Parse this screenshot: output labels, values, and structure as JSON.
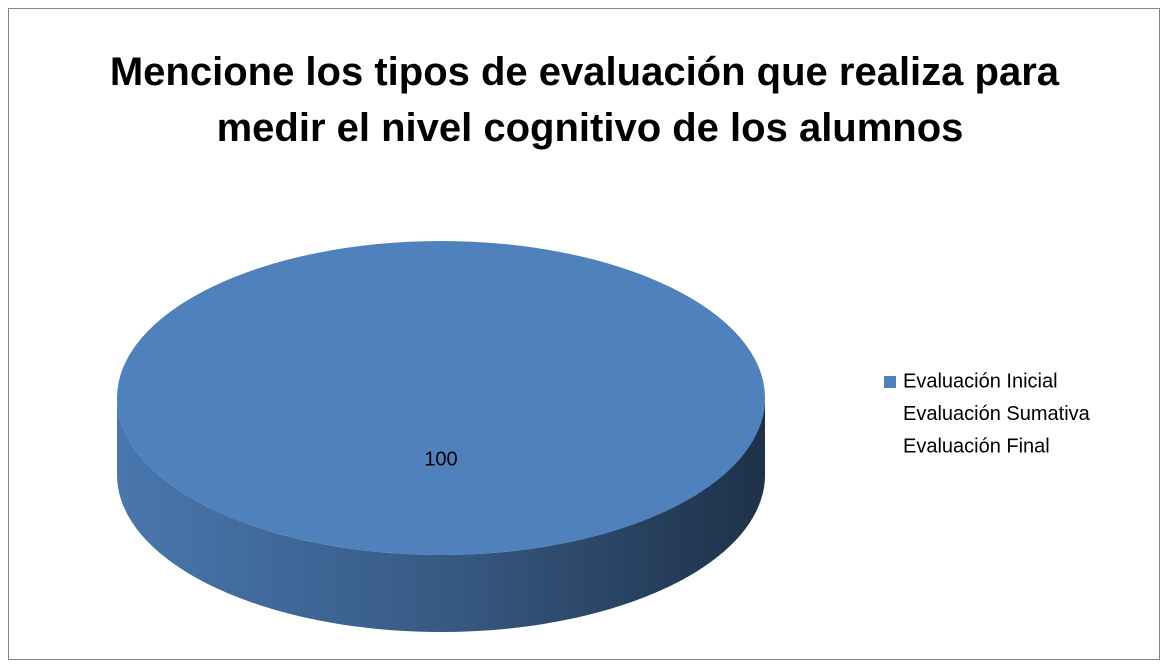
{
  "chart_data": {
    "type": "pie",
    "title": "Mencione los tipos de evaluación que realiza para medir el nivel cognitivo de los alumnos",
    "categories": [
      "Evaluación Inicial",
      "Evaluación Sumativa",
      "Evaluación Final"
    ],
    "values": [
      100,
      0,
      0
    ],
    "colors": [
      "#4f81bd",
      null,
      null
    ],
    "legend": "right"
  }
}
